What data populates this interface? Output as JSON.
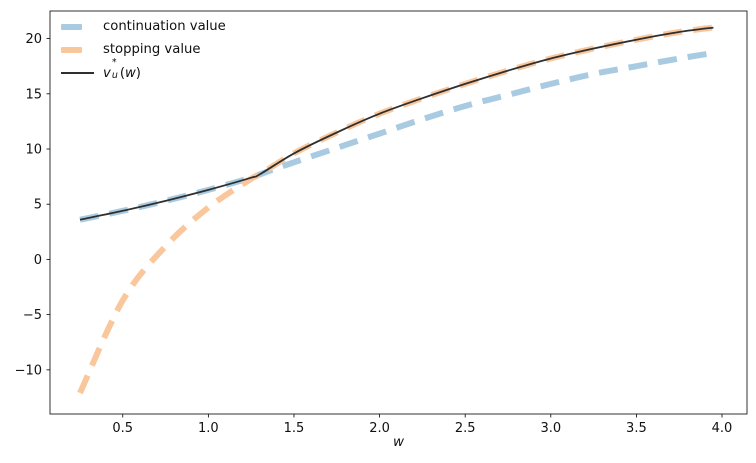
{
  "figure": {
    "background": "#ffffff"
  },
  "legend": {
    "position": "upper left",
    "items": [
      {
        "label": "continuation value"
      },
      {
        "label": "stopping value"
      },
      {
        "math_label": {
          "base": "v",
          "sup": "*",
          "sub": "u",
          "paren_open": "(",
          "arg": "w",
          "paren_close": ")"
        }
      }
    ]
  },
  "chart_data": {
    "type": "line",
    "title": "",
    "xlabel": "w",
    "ylabel": "",
    "grid": false,
    "legend_position": "upper left",
    "xlim": [
      0.075,
      4.146
    ],
    "ylim": [
      -14.0,
      22.5
    ],
    "xticks": {
      "values": [
        0.5,
        1.0,
        1.5,
        2.0,
        2.5,
        3.0,
        3.5,
        4.0
      ],
      "labels": [
        "0.5",
        "1.0",
        "1.5",
        "2.0",
        "2.5",
        "3.0",
        "3.5",
        "4.0"
      ]
    },
    "yticks": {
      "values": [
        -10,
        -5,
        0,
        5,
        10,
        15,
        20
      ],
      "labels": [
        "−10",
        "−5",
        "0",
        "5",
        "10",
        "15",
        "20"
      ]
    },
    "x": [
      0.25,
      0.5,
      0.75,
      1.0,
      1.25,
      1.3,
      1.5,
      1.75,
      2.0,
      2.25,
      2.5,
      2.75,
      3.0,
      3.25,
      3.5,
      3.75,
      3.95
    ],
    "series": [
      {
        "name": "continuation value",
        "color": "#a9cbe1",
        "style": "dashed",
        "width": 6,
        "values": [
          3.6,
          4.4,
          5.3,
          6.3,
          7.4,
          7.7,
          8.8,
          10.1,
          11.4,
          12.7,
          13.9,
          14.9,
          15.9,
          16.8,
          17.5,
          18.2,
          18.7
        ]
      },
      {
        "name": "stopping value",
        "color": "#fac79c",
        "style": "dashed",
        "width": 6,
        "values": [
          -12.1,
          -3.7,
          1.2,
          4.7,
          7.3,
          7.7,
          9.6,
          11.5,
          13.2,
          14.6,
          15.9,
          17.1,
          18.2,
          19.1,
          19.9,
          20.6,
          21.0
        ]
      },
      {
        "name": "v_u*(w)",
        "color": "#2f2f2f",
        "style": "solid",
        "width": 1.8,
        "values": [
          3.6,
          4.4,
          5.3,
          6.3,
          7.4,
          7.7,
          9.6,
          11.5,
          13.2,
          14.6,
          15.9,
          17.1,
          18.2,
          19.1,
          19.9,
          20.6,
          21.0
        ]
      }
    ],
    "colors": {
      "spine": "#000000",
      "tick": "#000000",
      "text": "#111111"
    }
  }
}
